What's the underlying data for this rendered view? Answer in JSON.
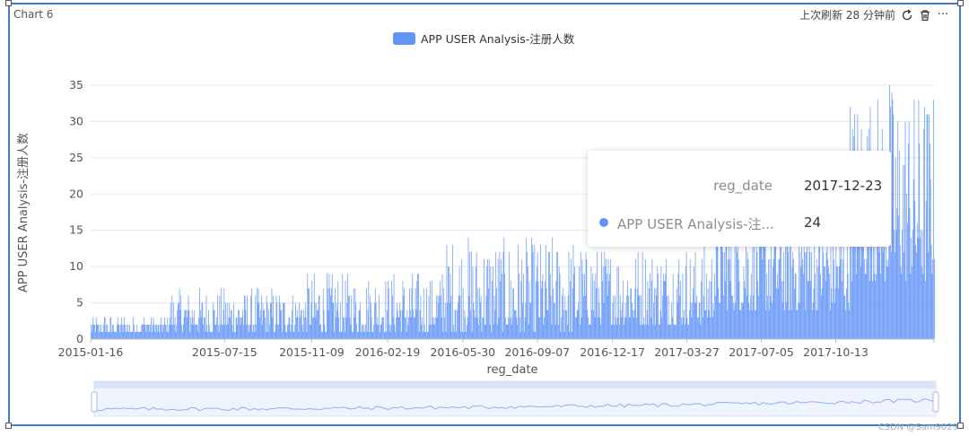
{
  "widget": {
    "chart_name": "Chart 6",
    "refresh_text": "上次刷新 28 分钟前",
    "icons": [
      "refresh-icon",
      "trash-icon",
      "more-icon"
    ],
    "more_glyph": "···"
  },
  "colors": {
    "bar": "#6395f9",
    "frame": "#3a7bdc",
    "grid": "#e3e8f2"
  },
  "chart_data": {
    "type": "bar",
    "legend_position": "top-center",
    "grid": true,
    "xlabel": "reg_date",
    "ylabel": "APP USER Analysis-注册人数",
    "ylim": [
      0,
      35
    ],
    "yticks": [
      0,
      5,
      10,
      15,
      20,
      25,
      30,
      35
    ],
    "x_range": [
      "2015-01-16",
      "2018-02-22"
    ],
    "xticks": [
      "2015-01-16",
      "2015-07-15",
      "2015-11-09",
      "2016-02-19",
      "2016-05-30",
      "2016-09-07",
      "2016-12-17",
      "2017-03-27",
      "2017-07-05",
      "2017-10-13"
    ],
    "series": [
      {
        "name": "APP USER Analysis-注册人数",
        "approx_daily_values_by_period": [
          {
            "from": "2015-01-16",
            "to": "2015-04-30",
            "range": [
              1,
              3
            ]
          },
          {
            "from": "2015-05-01",
            "to": "2015-10-31",
            "range": [
              1,
              7
            ]
          },
          {
            "from": "2015-11-01",
            "to": "2016-04-30",
            "range": [
              1,
              9
            ]
          },
          {
            "from": "2016-05-01",
            "to": "2016-10-31",
            "range": [
              1,
              14
            ]
          },
          {
            "from": "2016-11-01",
            "to": "2017-04-30",
            "range": [
              2,
              13
            ]
          },
          {
            "from": "2017-05-01",
            "to": "2017-10-31",
            "range": [
              4,
              20
            ]
          },
          {
            "from": "2017-11-01",
            "to": "2018-02-22",
            "range": [
              8,
              35
            ]
          }
        ]
      }
    ],
    "tooltip": {
      "x_label": "reg_date",
      "x_value": "2017-12-23",
      "series_label": "APP USER Analysis-注...",
      "value": "24"
    },
    "slider": {
      "range": [
        0,
        1
      ]
    }
  },
  "watermark": "CSDN @Sam9029"
}
